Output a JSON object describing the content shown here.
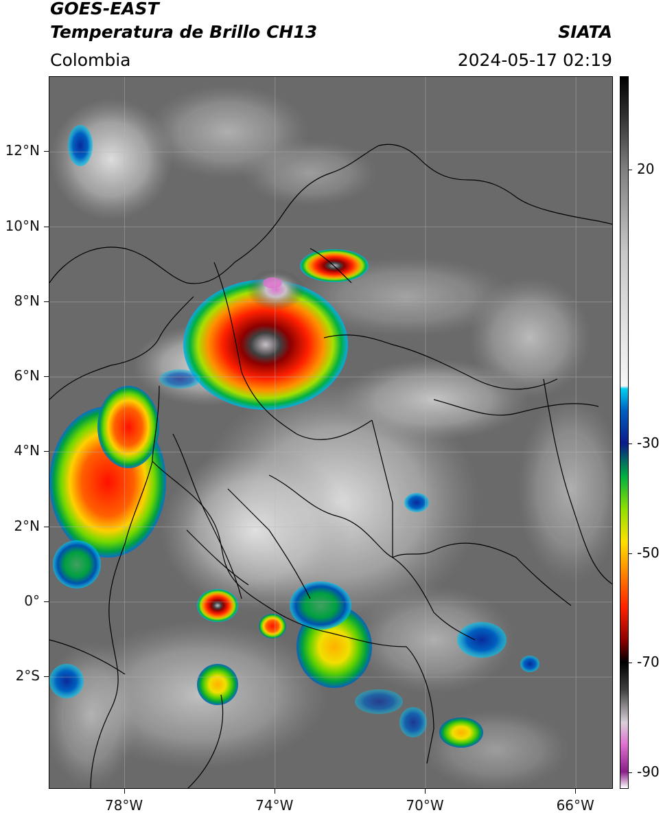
{
  "header": {
    "satellite": "GOES-EAST",
    "product": "Temperatura de Brillo CH13",
    "region": "Colombia",
    "agency": "SIATA",
    "timestamp": "2024-05-17 02:19"
  },
  "map": {
    "lat_labels": [
      "12°N",
      "10°N",
      "8°N",
      "6°N",
      "4°N",
      "2°N",
      "0°",
      "2°S"
    ],
    "lon_labels": [
      "78°W",
      "74°W",
      "70°W",
      "66°W"
    ],
    "lon_range": [
      -80,
      -65
    ],
    "lat_range": [
      -5,
      14
    ],
    "background_color": "#6a6a6a",
    "border_color": "#000000"
  },
  "colorbar": {
    "labels": [
      "20",
      "-30",
      "-50",
      "-70",
      "-90"
    ],
    "values": [
      20,
      -30,
      -50,
      -70,
      -90
    ],
    "range": [
      -93,
      37
    ],
    "stops": [
      {
        "t": -93,
        "color": "#ffffff"
      },
      {
        "t": -90,
        "color": "#8a1e8a"
      },
      {
        "t": -85,
        "color": "#e070d0"
      },
      {
        "t": -81,
        "color": "#d8d0d8"
      },
      {
        "t": -75,
        "color": "#404040"
      },
      {
        "t": -70,
        "color": "#000000"
      },
      {
        "t": -66,
        "color": "#8b0000"
      },
      {
        "t": -60,
        "color": "#ff2000"
      },
      {
        "t": -53,
        "color": "#ff9000"
      },
      {
        "t": -48,
        "color": "#ffe000"
      },
      {
        "t": -42,
        "color": "#90e000"
      },
      {
        "t": -36,
        "color": "#00b040"
      },
      {
        "t": -30,
        "color": "#0a1a8a"
      },
      {
        "t": -24,
        "color": "#0060c0"
      },
      {
        "t": -20,
        "color": "#00d0f0"
      },
      {
        "t": -19.5,
        "color": "#f6f6f6"
      },
      {
        "t": 5,
        "color": "#c8c8c8"
      },
      {
        "t": 20,
        "color": "#808080"
      },
      {
        "t": 30,
        "color": "#303030"
      },
      {
        "t": 37,
        "color": "#000000"
      }
    ]
  }
}
